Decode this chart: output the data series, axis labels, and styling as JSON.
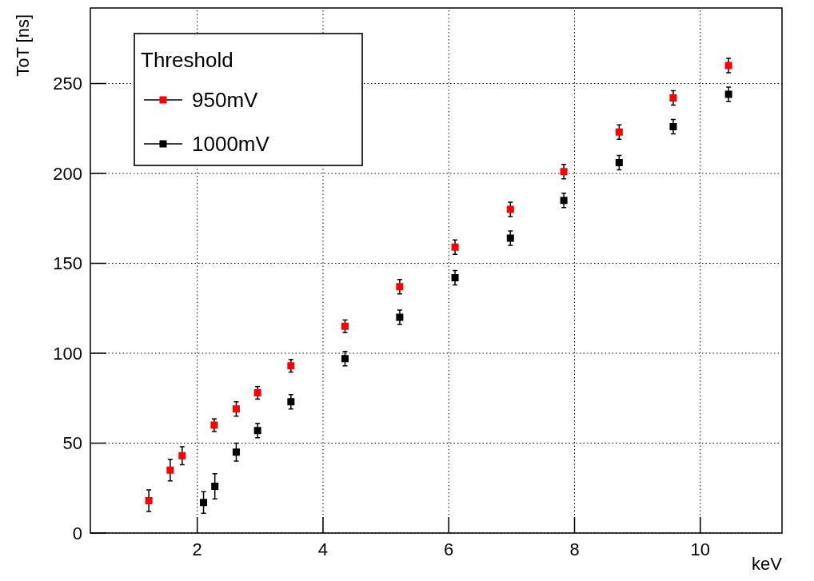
{
  "chart_data": {
    "type": "scatter",
    "xlabel": "keV",
    "ylabel": "ToT [ns]",
    "legend_title": "Threshold",
    "xlim": [
      0.3,
      11.3
    ],
    "ylim": [
      0,
      292
    ],
    "xticks": [
      2,
      4,
      6,
      8,
      10
    ],
    "yticks": [
      0,
      50,
      100,
      150,
      200,
      250
    ],
    "grid": true,
    "legend": "top left",
    "marker": "square",
    "series": [
      {
        "name": "950mV",
        "color": "#ff0000",
        "x": [
          1.23,
          1.57,
          1.76,
          2.27,
          2.62,
          2.96,
          3.49,
          4.35,
          5.22,
          6.1,
          6.98,
          7.83,
          8.71,
          9.57,
          10.45
        ],
        "values": [
          18,
          35,
          43,
          60,
          69,
          78,
          93,
          115,
          137,
          159,
          180,
          201,
          223,
          242,
          260
        ],
        "errors": [
          6,
          6,
          5,
          3.5,
          4,
          3.5,
          3.5,
          3.5,
          4,
          4,
          4,
          4,
          4,
          4,
          4
        ]
      },
      {
        "name": "1000mV",
        "color": "#000000",
        "x": [
          2.1,
          2.28,
          2.62,
          2.96,
          3.49,
          4.35,
          5.22,
          6.1,
          6.98,
          7.83,
          8.71,
          9.57,
          10.45
        ],
        "values": [
          17,
          26,
          45,
          57,
          73,
          97,
          120,
          142,
          164,
          185,
          206,
          226,
          244
        ],
        "errors": [
          6,
          7,
          5,
          4,
          4,
          4,
          4,
          4,
          4,
          4,
          4,
          4,
          4
        ]
      }
    ]
  }
}
